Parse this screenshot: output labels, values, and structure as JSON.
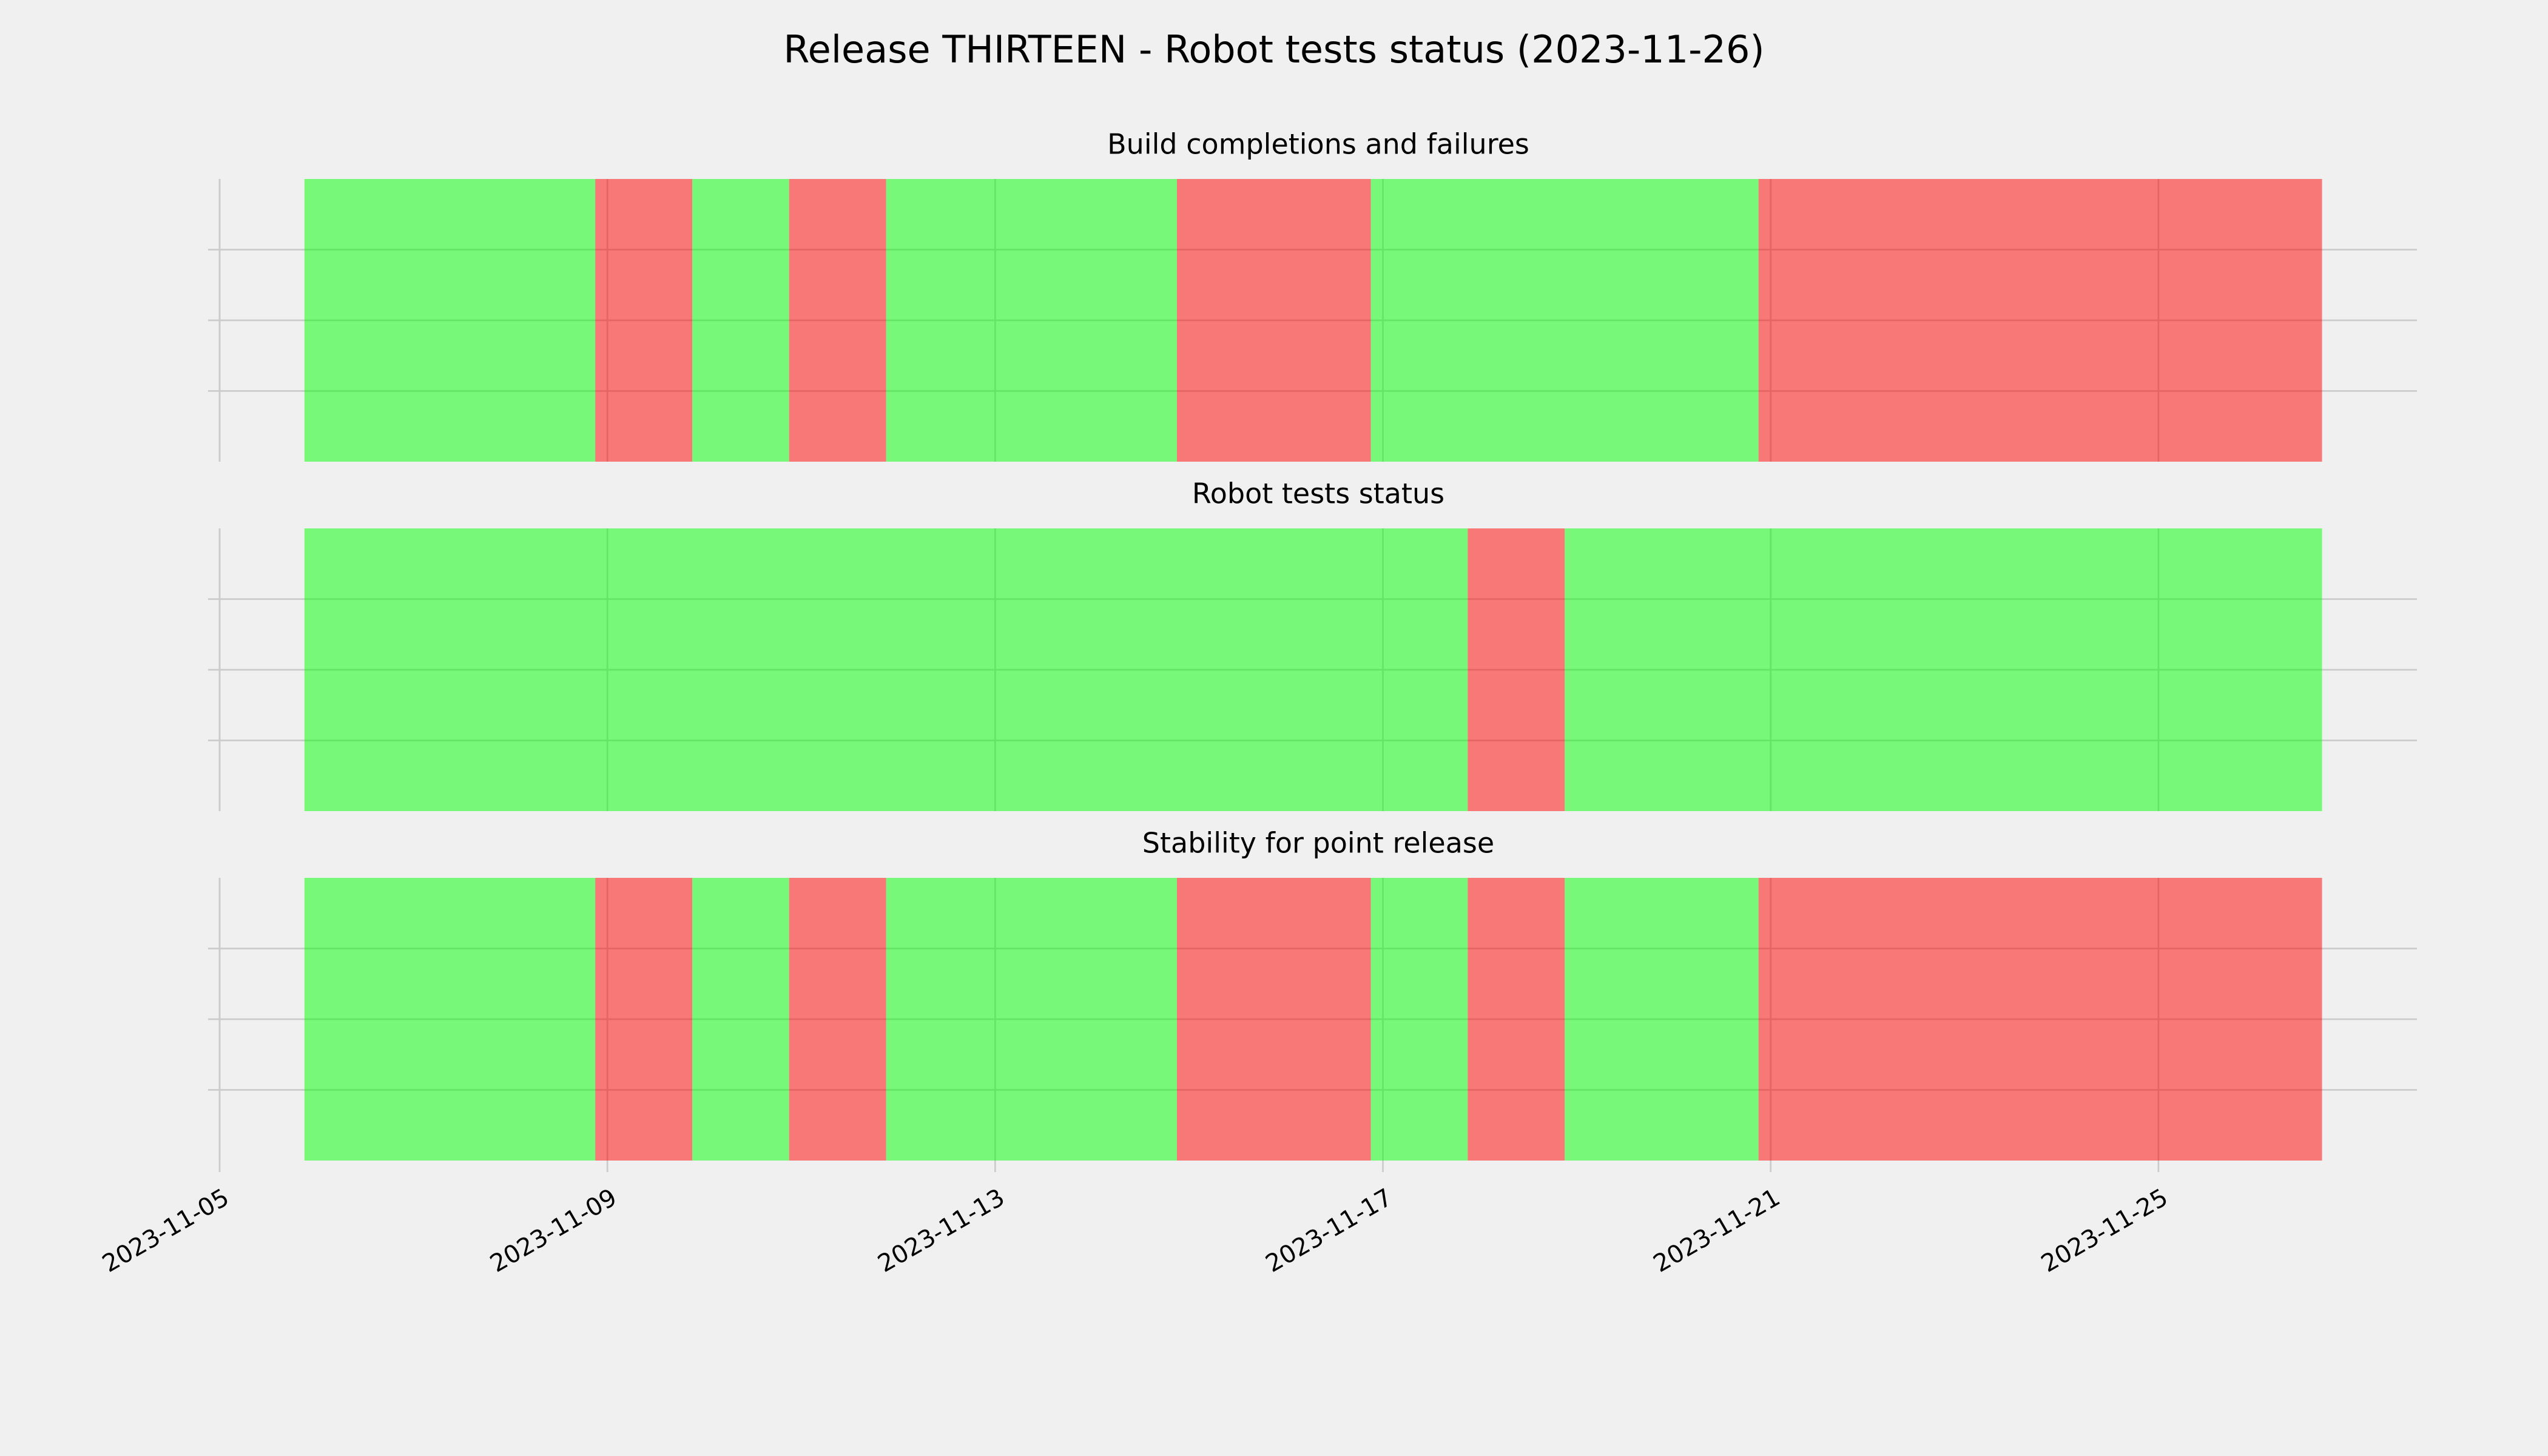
{
  "title": "Release THIRTEEN - Robot tests status (2023-11-26)",
  "chart_data": [
    {
      "type": "timeline",
      "title": "Build completions and failures",
      "alpha": 0.5,
      "grid": true,
      "xlim": [
        "2023-11-05T00:00",
        "2023-11-27T16:00"
      ],
      "xticks": [
        "2023-11-05",
        "2023-11-09",
        "2023-11-13",
        "2023-11-17",
        "2023-11-21",
        "2023-11-25"
      ],
      "ylim": [
        0,
        1
      ],
      "yticks": [
        0.25,
        0.5,
        0.75
      ],
      "segments": [
        {
          "start": "2023-11-05T21:00",
          "end": "2023-11-08T21:00",
          "color": "#00ff00"
        },
        {
          "start": "2023-11-08T21:00",
          "end": "2023-11-09T21:00",
          "color": "#ff0000"
        },
        {
          "start": "2023-11-09T21:00",
          "end": "2023-11-10T21:00",
          "color": "#00ff00"
        },
        {
          "start": "2023-11-10T21:00",
          "end": "2023-11-11T21:00",
          "color": "#ff0000"
        },
        {
          "start": "2023-11-11T21:00",
          "end": "2023-11-14T21:00",
          "color": "#00ff00"
        },
        {
          "start": "2023-11-14T21:00",
          "end": "2023-11-16T21:00",
          "color": "#ff0000"
        },
        {
          "start": "2023-11-16T21:00",
          "end": "2023-11-20T21:00",
          "color": "#00ff00"
        },
        {
          "start": "2023-11-20T21:00",
          "end": "2023-11-26T16:30",
          "color": "#ff0000"
        }
      ]
    },
    {
      "type": "timeline",
      "title": "Robot tests status",
      "alpha": 0.5,
      "grid": true,
      "xlim": [
        "2023-11-05T00:00",
        "2023-11-27T16:00"
      ],
      "xticks": [
        "2023-11-05",
        "2023-11-09",
        "2023-11-13",
        "2023-11-17",
        "2023-11-21",
        "2023-11-25"
      ],
      "ylim": [
        0,
        1
      ],
      "yticks": [
        0.25,
        0.5,
        0.75
      ],
      "segments": [
        {
          "start": "2023-11-05T21:00",
          "end": "2023-11-17T21:00",
          "color": "#00ff00"
        },
        {
          "start": "2023-11-17T21:00",
          "end": "2023-11-18T21:00",
          "color": "#ff0000"
        },
        {
          "start": "2023-11-18T21:00",
          "end": "2023-11-26T16:30",
          "color": "#00ff00"
        }
      ]
    },
    {
      "type": "timeline",
      "title": "Stability for point release",
      "alpha": 0.5,
      "grid": true,
      "xlim": [
        "2023-11-05T00:00",
        "2023-11-27T16:00"
      ],
      "xticks": [
        "2023-11-05",
        "2023-11-09",
        "2023-11-13",
        "2023-11-17",
        "2023-11-21",
        "2023-11-25"
      ],
      "ylim": [
        0,
        1
      ],
      "yticks": [
        0.25,
        0.5,
        0.75
      ],
      "segments": [
        {
          "start": "2023-11-05T21:00",
          "end": "2023-11-08T21:00",
          "color": "#00ff00"
        },
        {
          "start": "2023-11-08T21:00",
          "end": "2023-11-09T21:00",
          "color": "#ff0000"
        },
        {
          "start": "2023-11-09T21:00",
          "end": "2023-11-10T21:00",
          "color": "#00ff00"
        },
        {
          "start": "2023-11-10T21:00",
          "end": "2023-11-11T21:00",
          "color": "#ff0000"
        },
        {
          "start": "2023-11-11T21:00",
          "end": "2023-11-14T21:00",
          "color": "#00ff00"
        },
        {
          "start": "2023-11-14T21:00",
          "end": "2023-11-16T21:00",
          "color": "#ff0000"
        },
        {
          "start": "2023-11-16T21:00",
          "end": "2023-11-17T21:00",
          "color": "#00ff00"
        },
        {
          "start": "2023-11-17T21:00",
          "end": "2023-11-18T21:00",
          "color": "#ff0000"
        },
        {
          "start": "2023-11-18T21:00",
          "end": "2023-11-20T21:00",
          "color": "#00ff00"
        },
        {
          "start": "2023-11-20T21:00",
          "end": "2023-11-26T16:30",
          "color": "#ff0000"
        }
      ]
    }
  ]
}
